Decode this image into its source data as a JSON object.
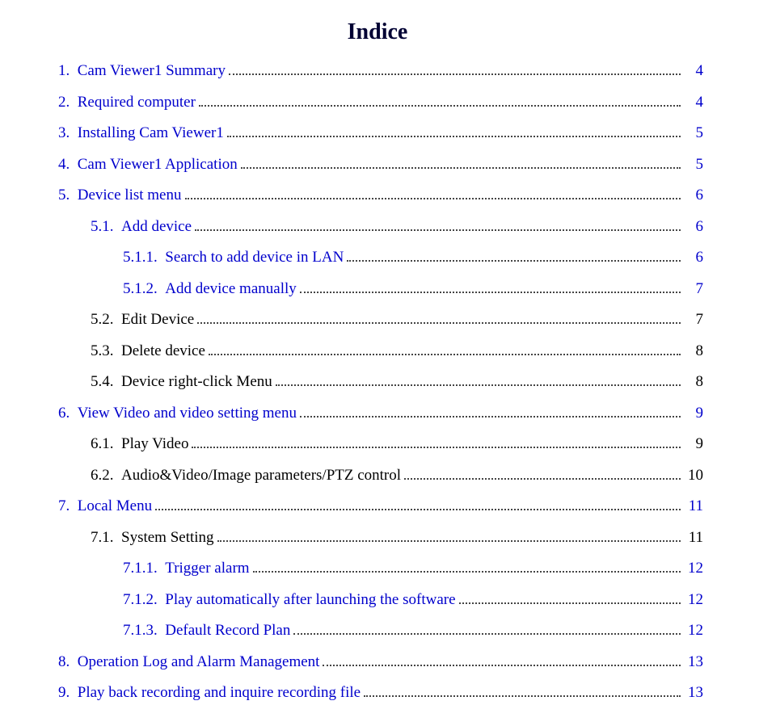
{
  "title": "Indice",
  "colors": {
    "blue": "#0000cc",
    "black": "#000000",
    "title": "#000033",
    "bg": "#ffffff",
    "leader": "#444444"
  },
  "entries": [
    {
      "indent": 0,
      "num": "1.",
      "label": "Cam Viewer1 Summary",
      "page": "4",
      "color": "blue"
    },
    {
      "indent": 0,
      "num": "2.",
      "label": "Required computer",
      "page": "4",
      "color": "blue"
    },
    {
      "indent": 0,
      "num": "3.",
      "label": "Installing Cam Viewer1",
      "page": "5",
      "color": "blue"
    },
    {
      "indent": 0,
      "num": "4.",
      "label": "Cam Viewer1 Application",
      "page": "5",
      "color": "blue"
    },
    {
      "indent": 0,
      "num": "5.",
      "label": "Device list menu",
      "page": "6",
      "color": "blue"
    },
    {
      "indent": 1,
      "num": "5.1.",
      "label": "Add device",
      "page": "6",
      "color": "blue"
    },
    {
      "indent": 2,
      "num": "5.1.1.",
      "label": "Search to add device in LAN",
      "page": "6",
      "color": "blue"
    },
    {
      "indent": 2,
      "num": "5.1.2.",
      "label": "Add device manually",
      "page": "7",
      "color": "blue"
    },
    {
      "indent": 1,
      "num": "5.2.",
      "label": "Edit Device",
      "page": "7",
      "color": "black"
    },
    {
      "indent": 1,
      "num": "5.3.",
      "label": "Delete device",
      "page": "8",
      "color": "black"
    },
    {
      "indent": 1,
      "num": "5.4.",
      "label": "Device right-click Menu",
      "page": "8",
      "color": "black"
    },
    {
      "indent": 0,
      "num": "6.",
      "label": "View Video and video setting menu",
      "page": "9",
      "color": "blue"
    },
    {
      "indent": 1,
      "num": "6.1.",
      "label": "Play Video",
      "page": "9",
      "color": "black"
    },
    {
      "indent": 1,
      "num": "6.2.",
      "label": "Audio&Video/Image parameters/PTZ control",
      "page": "10",
      "color": "black"
    },
    {
      "indent": 0,
      "num": "7.",
      "label": "Local Menu",
      "page": "11",
      "color": "blue"
    },
    {
      "indent": 1,
      "num": "7.1.",
      "label": "System Setting",
      "page": "11",
      "color": "black"
    },
    {
      "indent": 2,
      "num": "7.1.1.",
      "label": "Trigger alarm",
      "page": "12",
      "color": "blue"
    },
    {
      "indent": 2,
      "num": "7.1.2.",
      "label": "Play automatically after launching the software",
      "page": "12",
      "color": "blue"
    },
    {
      "indent": 2,
      "num": "7.1.3.",
      "label": "Default Record Plan",
      "page": "12",
      "color": "blue"
    },
    {
      "indent": 0,
      "num": "8.",
      "label": "Operation Log and Alarm Management",
      "page": "13",
      "color": "blue"
    },
    {
      "indent": 0,
      "num": "9.",
      "label": "Play back recording and inquire recording file",
      "page": "13",
      "color": "blue"
    }
  ]
}
